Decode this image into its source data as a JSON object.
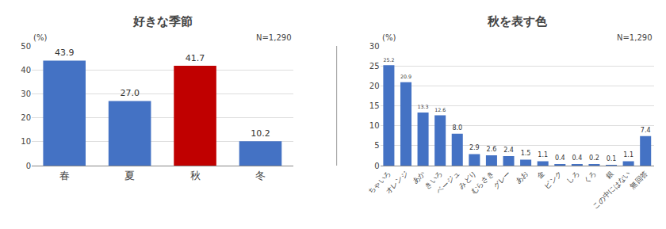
{
  "chart_data": [
    {
      "type": "bar",
      "title": "好きな季節",
      "ylabel": "(%)",
      "annotations": [
        "N=1,290"
      ],
      "categories": [
        "春",
        "夏",
        "秋",
        "冬"
      ],
      "values": [
        43.9,
        27.0,
        41.7,
        10.2
      ],
      "value_labels": [
        "43.9",
        "27.0",
        "41.7",
        "10.2"
      ],
      "colors": [
        "#4472C4",
        "#4472C4",
        "#C00000",
        "#4472C4"
      ],
      "ylim": [
        0,
        50
      ],
      "yticks": [
        0,
        10,
        20,
        30,
        40,
        50
      ],
      "grid": true,
      "data_labels": true
    },
    {
      "type": "bar",
      "title": "秋を表す色",
      "ylabel": "(%)",
      "annotations": [
        "N=1,290"
      ],
      "categories": [
        "ちゃいろ",
        "オレンジ",
        "あか",
        "きいろ",
        "ベージュ",
        "みどり",
        "むらさき",
        "グレー",
        "あお",
        "金",
        "ピンク",
        "しろ",
        "くろ",
        "銀",
        "この中にはない",
        "無回答"
      ],
      "values": [
        25.2,
        20.9,
        13.3,
        12.6,
        8.0,
        2.9,
        2.6,
        2.4,
        1.5,
        1.1,
        0.4,
        0.4,
        0.2,
        0.1,
        1.1,
        7.4
      ],
      "value_labels": [
        "25.2",
        "20.9",
        "13.3",
        "12.6",
        "8.0",
        "2.9",
        "2.6",
        "2.4",
        "1.5",
        "1.1",
        "0.4",
        "0.4",
        "0.2",
        "0.1",
        "1.1",
        "7.4"
      ],
      "color": "#4472C4",
      "ylim": [
        0,
        30
      ],
      "yticks": [
        0,
        5,
        10,
        15,
        20,
        25,
        30
      ],
      "grid": true,
      "data_labels": true
    }
  ]
}
